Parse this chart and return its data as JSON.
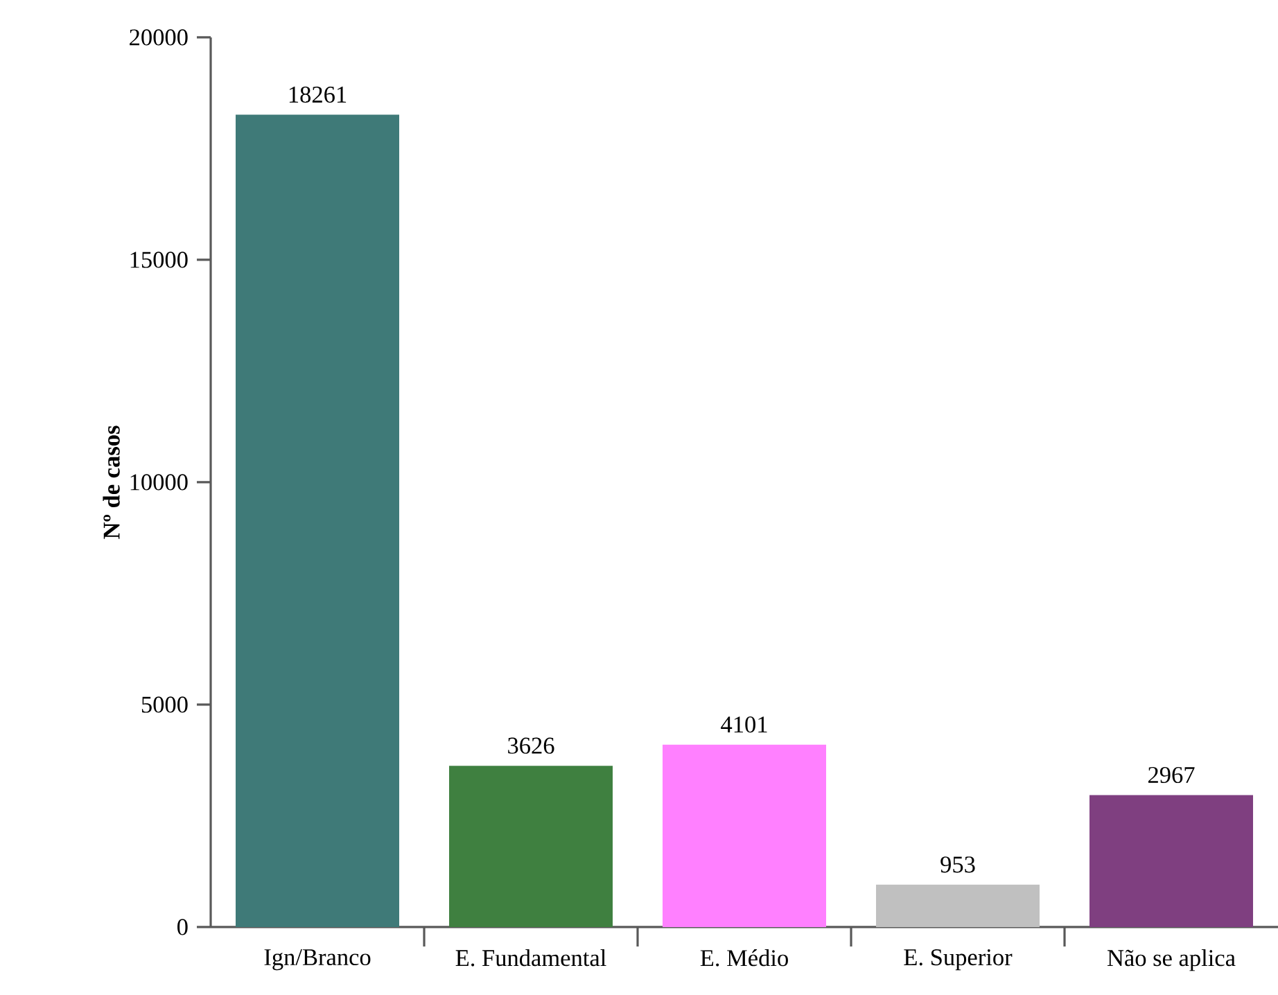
{
  "chart_data": {
    "type": "bar",
    "ylabel": "Nº de casos",
    "categories": [
      "Ign/Branco",
      "E. Fundamental",
      "E. Médio",
      "E. Superior",
      "Não se aplica"
    ],
    "values": [
      18261,
      3626,
      4101,
      953,
      2967
    ],
    "colors": [
      "#3f7a78",
      "#3f8040",
      "#ff80ff",
      "#c0c0c0",
      "#7f3f80"
    ],
    "ylim": [
      0,
      20000
    ],
    "yticks": [
      0,
      5000,
      10000,
      15000,
      20000
    ],
    "data_labels": true
  }
}
